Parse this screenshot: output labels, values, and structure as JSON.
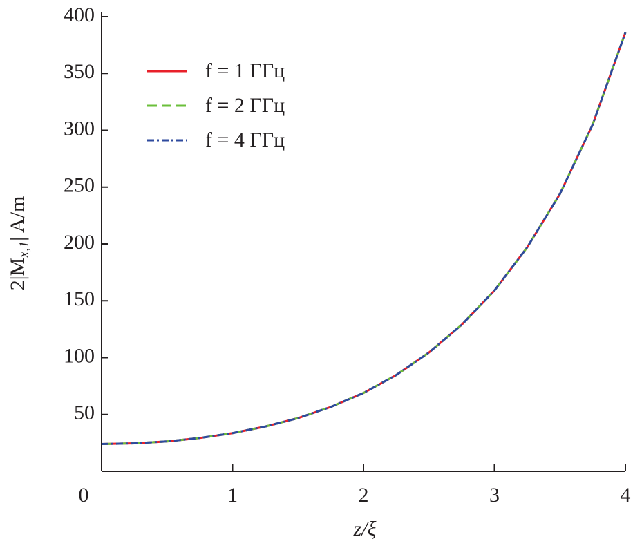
{
  "chart_data": {
    "type": "line",
    "xlabel": "z/ξ",
    "ylabel": {
      "main": "2|M",
      "sub": "x,1",
      "end": "| A/m"
    },
    "x": [
      0,
      0.25,
      0.5,
      0.75,
      1,
      1.25,
      1.5,
      1.75,
      2,
      2.25,
      2.5,
      2.75,
      3,
      3.25,
      3.5,
      3.75,
      4
    ],
    "series": [
      {
        "name": "f = 1 ГГц",
        "color": "#e8202a",
        "dash": "solid",
        "values": [
          24,
          24.6,
          26.3,
          29.3,
          33.6,
          39.4,
          46.8,
          56.6,
          68.9,
          84.7,
          104.5,
          128.9,
          159,
          197,
          244,
          305,
          386
        ]
      },
      {
        "name": "f = 2 ГГц",
        "color": "#6bbf3b",
        "dash": "dashed",
        "values": [
          24,
          24.6,
          26.3,
          29.3,
          33.6,
          39.4,
          46.8,
          56.6,
          68.9,
          84.7,
          104.5,
          128.9,
          159,
          197,
          244,
          305,
          386
        ]
      },
      {
        "name": "f = 4 ГГц",
        "color": "#2e4a9e",
        "dash": "dashdot",
        "values": [
          24,
          24.6,
          26.3,
          29.3,
          33.6,
          39.4,
          46.8,
          56.6,
          68.9,
          84.7,
          104.5,
          128.9,
          159,
          197,
          244,
          305,
          386
        ]
      }
    ],
    "xlim": [
      0,
      4
    ],
    "xticks": [
      0,
      1,
      2,
      3,
      4
    ],
    "ylim": [
      0,
      400
    ],
    "yticks": [
      50,
      100,
      150,
      200,
      250,
      300,
      350,
      400
    ],
    "grid": false,
    "legend": "upper-left"
  }
}
